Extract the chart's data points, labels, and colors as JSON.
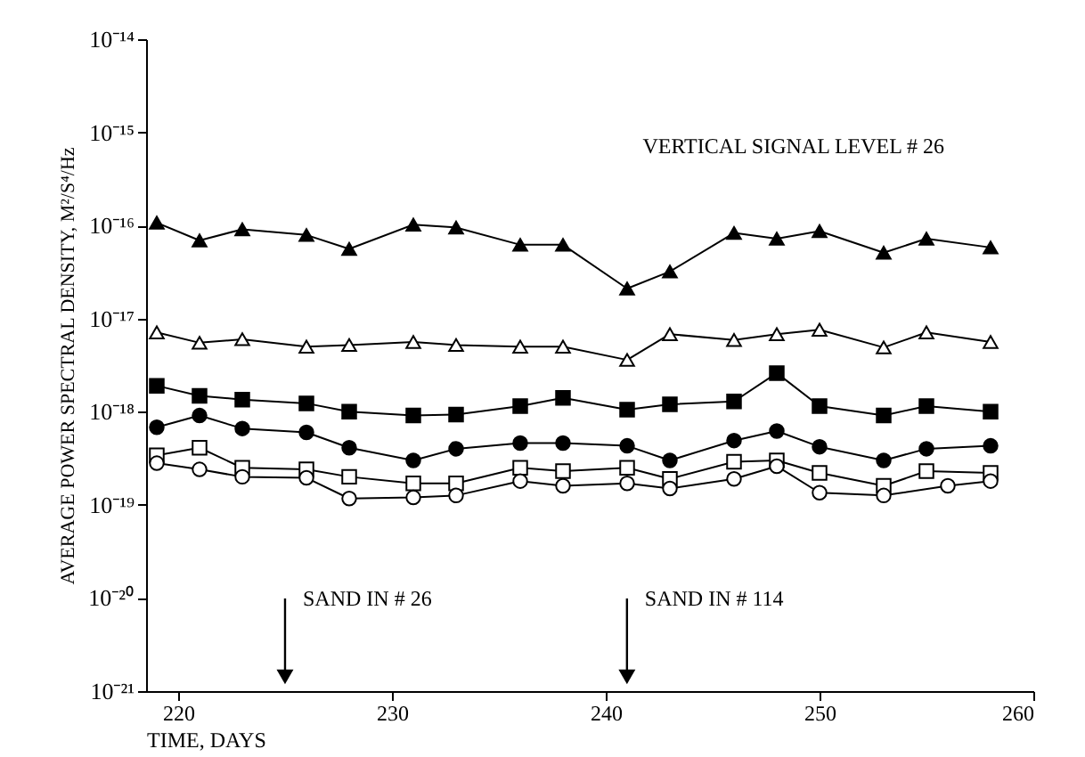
{
  "chart_data": {
    "type": "line",
    "xlabel": "TIME, DAYS",
    "ylabel": "AVERAGE POWER SPECTRAL DENSITY, M²/S⁴/Hz",
    "x": [
      219,
      221,
      223,
      226,
      228,
      231,
      233,
      236,
      238,
      241,
      243,
      246,
      248,
      250,
      253,
      255,
      258
    ],
    "series": [
      {
        "color": "#000000",
        "marker": "triangle",
        "values": [
          1.07e-16,
          6.9e-17,
          9.1e-17,
          7.9e-17,
          5.6e-17,
          1.02e-16,
          9.5e-17,
          6.2e-17,
          6.2e-17,
          2.1e-17,
          3.2e-17,
          8.3e-17,
          7.2e-17,
          8.7e-17,
          5.1e-17,
          7.2e-17,
          5.8e-17
        ]
      },
      {
        "color": "#000000",
        "marker": "triangle",
        "colors": [
          "#ffffff",
          "#ffffff",
          "#ffffff",
          "#ffffff",
          "#ffffff",
          "#ffffff",
          "#ffffff",
          "#ffffff",
          "#ffffff",
          "#ffffff",
          "#ffffff",
          "#ffffff",
          "#ffffff",
          "#ffffff",
          "#ffffff",
          "#ffffff",
          "#ffffff"
        ],
        "values": [
          7.1e-18,
          5.5e-18,
          6e-18,
          5e-18,
          5.2e-18,
          5.6e-18,
          5.2e-18,
          5e-18,
          5e-18,
          3.6e-18,
          6.8e-18,
          5.9e-18,
          6.8e-18,
          7.6e-18,
          4.9e-18,
          7.1e-18,
          5.6e-18
        ]
      },
      {
        "color": "#000000",
        "marker": "square",
        "values": [
          1.9e-18,
          1.48e-18,
          1.35e-18,
          1.23e-18,
          1e-18,
          9.1e-19,
          9.3e-19,
          1.15e-18,
          1.41e-18,
          1.05e-18,
          1.2e-18,
          1.29e-18,
          2.6e-18,
          1.15e-18,
          9.1e-19,
          1.15e-18,
          1e-18
        ]
      },
      {
        "color": "#000000",
        "marker": "circle",
        "values": [
          6.8e-19,
          9.1e-19,
          6.6e-19,
          6e-19,
          4.1e-19,
          3e-19,
          4e-19,
          4.6e-19,
          4.6e-19,
          4.3e-19,
          3e-19,
          4.9e-19,
          6.2e-19,
          4.2e-19,
          3e-19,
          4e-19,
          4.3e-19
        ]
      },
      {
        "color": "#000000",
        "marker": "square",
        "colors": [
          "#ffffff",
          "#ffffff",
          "#ffffff",
          "#ffffff",
          "#ffffff",
          "#ffffff",
          "#ffffff",
          "#ffffff",
          "#ffffff",
          "#ffffff",
          "#ffffff",
          "#ffffff",
          "#ffffff",
          "#ffffff",
          "#ffffff",
          "#ffffff",
          "#ffffff"
        ],
        "values": [
          3.4e-19,
          4.1e-19,
          2.5e-19,
          2.4e-19,
          2e-19,
          1.7e-19,
          1.7e-19,
          2.5e-19,
          2.3e-19,
          2.5e-19,
          1.9e-19,
          2.9e-19,
          3e-19,
          2.2e-19,
          1.6e-19,
          2.3e-19,
          2.2e-19
        ]
      },
      {
        "color": "#000000",
        "marker": "circle",
        "colors": [
          "#ffffff",
          "#ffffff",
          "#ffffff",
          "#ffffff",
          "#ffffff",
          "#ffffff",
          "#ffffff",
          "#ffffff",
          "#ffffff",
          "#ffffff",
          "#ffffff",
          "#ffffff",
          "#ffffff",
          "#ffffff",
          "#ffffff",
          "#ffffff",
          "#ffffff"
        ],
        "x": [
          219,
          221,
          223,
          226,
          228,
          231,
          233,
          236,
          238,
          241,
          243,
          246,
          248,
          250,
          253,
          256,
          258
        ],
        "values": [
          2.8e-19,
          2.4e-19,
          2e-19,
          1.95e-19,
          1.17e-19,
          1.2e-19,
          1.26e-19,
          1.8e-19,
          1.6e-19,
          1.7e-19,
          1.5e-19,
          1.9e-19,
          2.6e-19,
          1.35e-19,
          1.26e-19,
          1.6e-19,
          1.8e-19
        ]
      }
    ],
    "annotations": [
      "VERTICAL SIGNAL LEVEL # 26",
      "SAND IN # 26",
      "SAND IN # 114"
    ],
    "log": "y",
    "xlim": [
      218.5,
      260
    ],
    "xticks": [
      220,
      230,
      240,
      250,
      260
    ],
    "ylim": [
      1e-21,
      1e-14
    ],
    "yticks": [
      {
        "value": 1e-21,
        "label": "10⁻²¹"
      },
      {
        "value": 1e-20,
        "label": "10⁻²⁰"
      },
      {
        "value": 1e-19,
        "label": "10⁻¹⁹"
      },
      {
        "value": 1e-18,
        "label": "10⁻¹⁸"
      },
      {
        "value": 1e-17,
        "label": "10⁻¹⁷"
      },
      {
        "value": 1e-16,
        "label": "10⁻¹⁶"
      },
      {
        "value": 1e-15,
        "label": "10⁻¹⁵"
      },
      {
        "value": 1e-14,
        "label": "10⁻¹⁴"
      }
    ],
    "grid": false,
    "line_style": "solid"
  }
}
